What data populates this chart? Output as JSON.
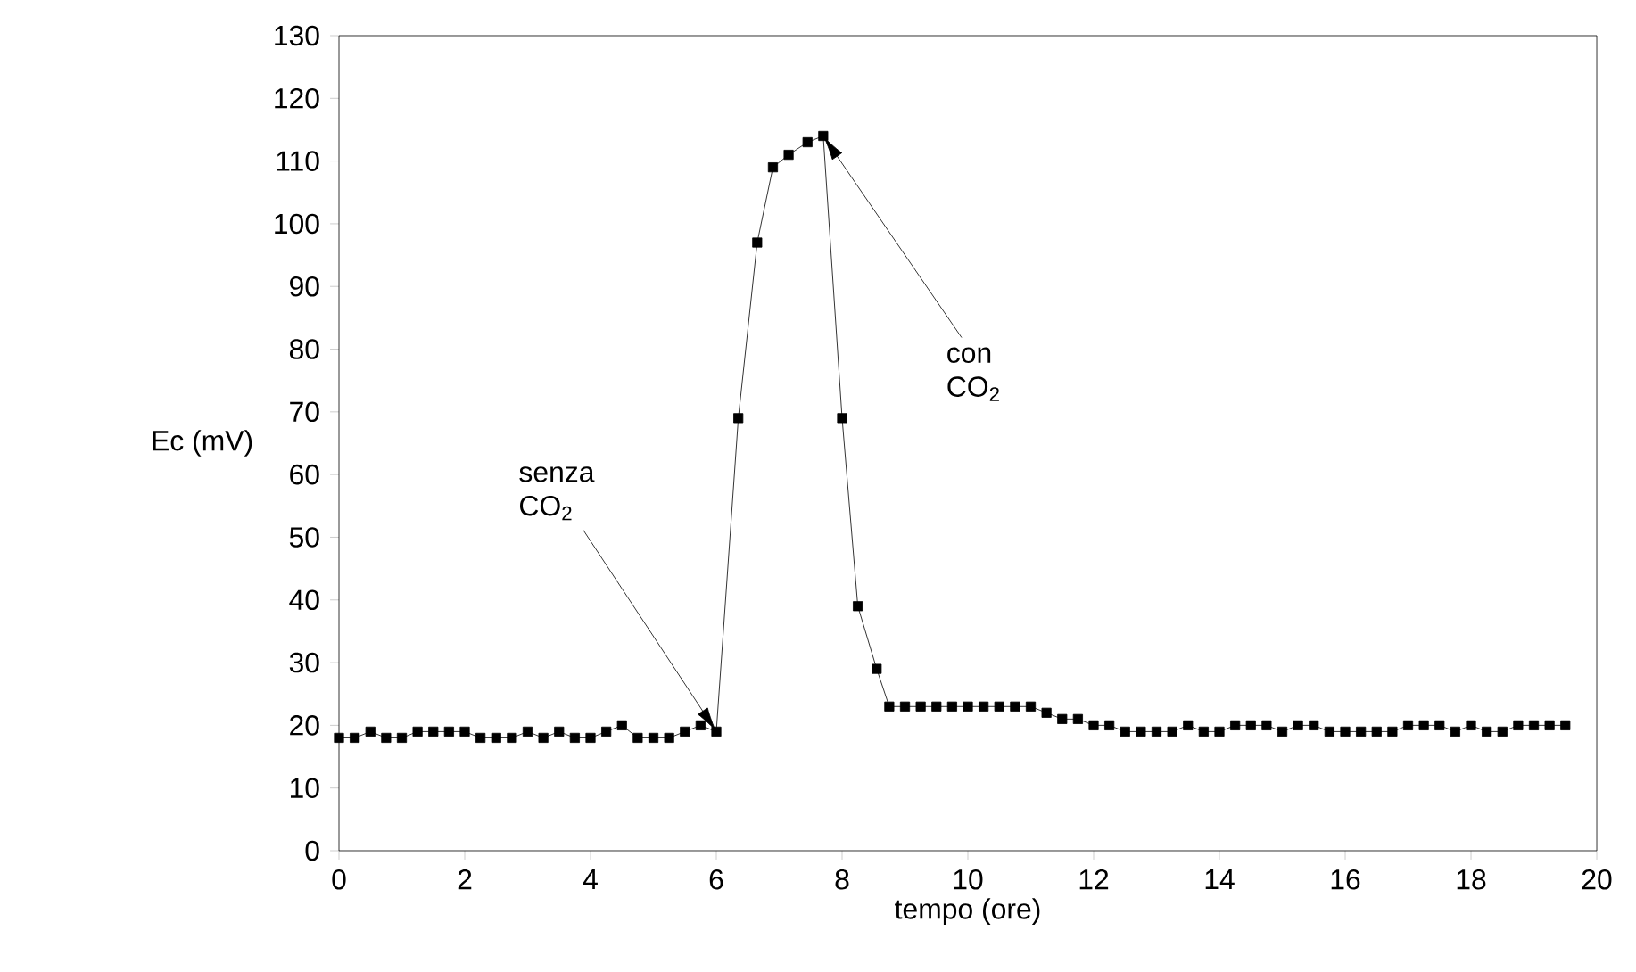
{
  "chart_data": {
    "type": "line",
    "xlabel": "tempo (ore)",
    "ylabel": "Ec (mV)",
    "xlim": [
      0,
      20
    ],
    "ylim": [
      0,
      130
    ],
    "xticks": [
      0,
      2,
      4,
      6,
      8,
      10,
      12,
      14,
      16,
      18,
      20
    ],
    "yticks": [
      0,
      10,
      20,
      30,
      40,
      50,
      60,
      70,
      80,
      90,
      100,
      110,
      120,
      130
    ],
    "marker": "square",
    "line_style": "solid",
    "series": [
      {
        "color": "#000000",
        "x": [
          0,
          0.25,
          0.5,
          0.75,
          1,
          1.25,
          1.5,
          1.75,
          2,
          2.25,
          2.5,
          2.75,
          3,
          3.25,
          3.5,
          3.75,
          4,
          4.25,
          4.5,
          4.75,
          5,
          5.25,
          5.5,
          5.75,
          6,
          6.35,
          6.65,
          6.9,
          7.15,
          7.45,
          7.7,
          8.0,
          8.25,
          8.55,
          8.75,
          9,
          9.25,
          9.5,
          9.75,
          10,
          10.25,
          10.5,
          10.75,
          11,
          11.25,
          11.5,
          11.75,
          12,
          12.25,
          12.5,
          12.75,
          13,
          13.25,
          13.5,
          13.75,
          14,
          14.25,
          14.5,
          14.75,
          15,
          15.25,
          15.5,
          15.75,
          16,
          16.25,
          16.5,
          16.75,
          17,
          17.25,
          17.5,
          17.75,
          18,
          18.25,
          18.5,
          18.75,
          19,
          19.25,
          19.5
        ],
        "values": [
          18,
          18,
          19,
          18,
          18,
          19,
          19,
          19,
          19,
          18,
          18,
          18,
          19,
          18,
          19,
          18,
          18,
          19,
          20,
          18,
          18,
          18,
          19,
          20,
          19,
          69,
          97,
          109,
          111,
          113,
          114,
          69,
          39,
          29,
          23,
          23,
          23,
          23,
          23,
          23,
          23,
          23,
          23,
          23,
          22,
          21,
          21,
          20,
          20,
          19,
          19,
          19,
          19,
          20,
          19,
          19,
          20,
          20,
          20,
          19,
          20,
          20,
          19,
          19,
          19,
          19,
          19,
          20,
          20,
          20,
          19,
          20,
          19,
          19,
          20,
          20,
          20,
          20
        ]
      }
    ],
    "annotations": [
      {
        "text": "senza CO$_{2}$",
        "x": 6,
        "y": 19
      },
      {
        "text": "con CO$_{2}$",
        "x": 7.7,
        "y": 114
      }
    ]
  }
}
